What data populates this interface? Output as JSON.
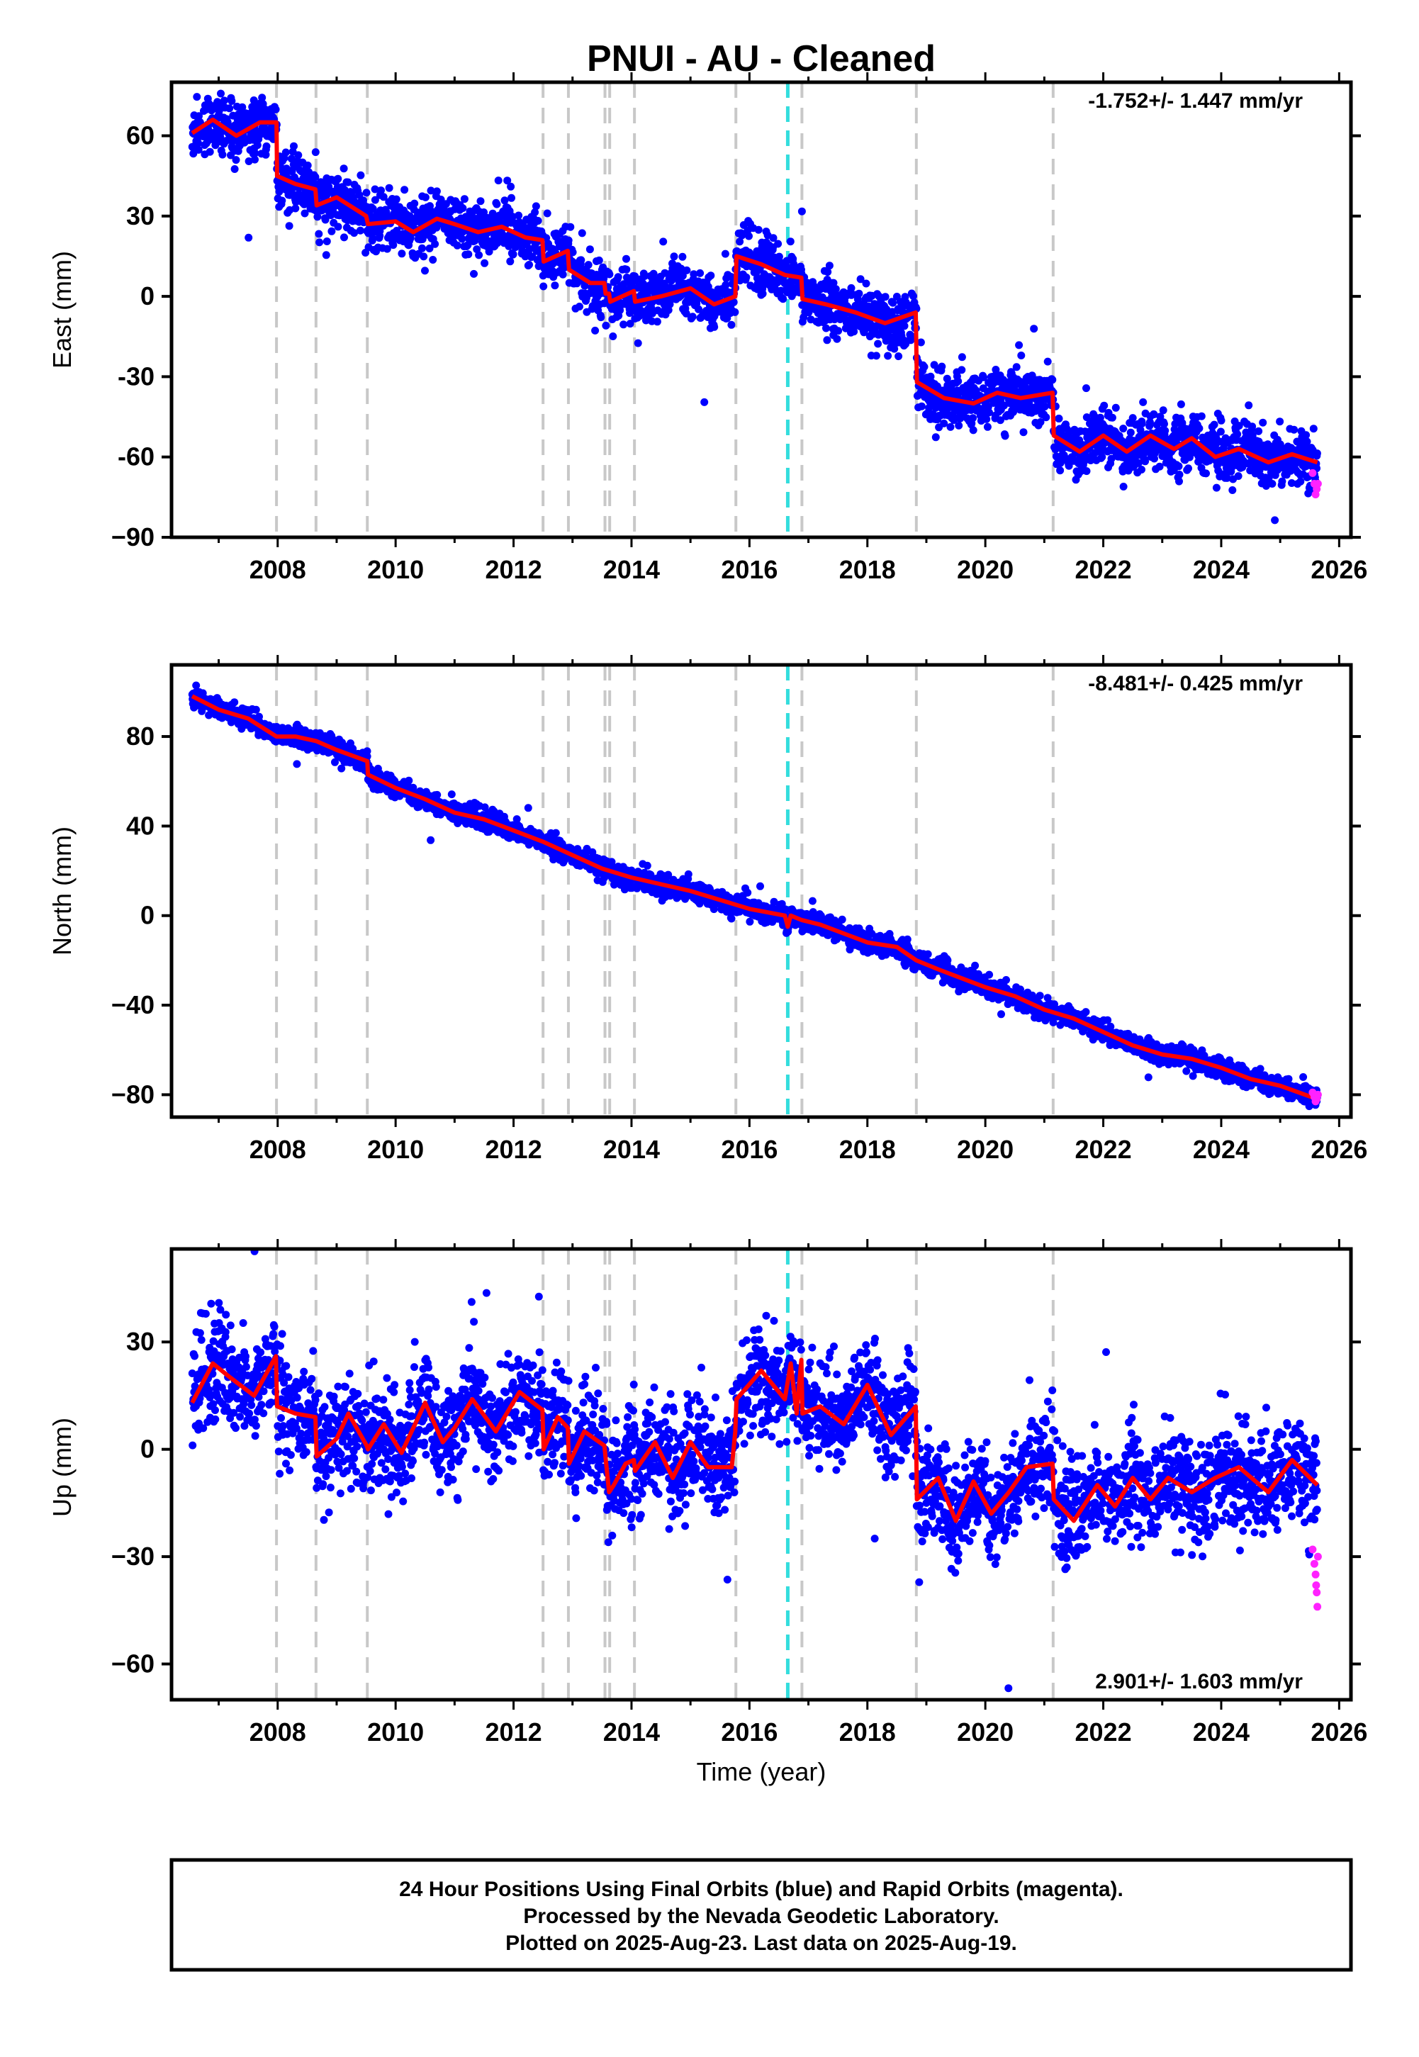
{
  "title": "PNUI  - AU - Cleaned",
  "colors": {
    "final_orbits": "#0000ff",
    "rapid_orbits": "#ff22ff",
    "model": "#ff0000",
    "event_lines": "#c8c8c8",
    "antenna_change": "#33dddd"
  },
  "xaxis": {
    "label": "Time (year)",
    "range": [
      2006.2,
      2026.2
    ],
    "ticks": [
      2008,
      2010,
      2012,
      2014,
      2016,
      2018,
      2020,
      2022,
      2024,
      2026
    ],
    "tick_labels": [
      "2008",
      "2010",
      "2012",
      "2014",
      "2016",
      "2018",
      "2020",
      "2022",
      "2024",
      "2026"
    ]
  },
  "event_lines": [
    2007.98,
    2008.65,
    2009.52,
    2012.5,
    2012.93,
    2013.55,
    2013.63,
    2014.05,
    2015.77,
    2016.89,
    2018.83,
    2021.15
  ],
  "antenna_change": [
    2016.65
  ],
  "footer": {
    "line1": "24 Hour Positions Using Final Orbits (blue) and Rapid Orbits (magenta).",
    "line2": "Processed by the Nevada Geodetic Laboratory.",
    "line3": "Plotted on 2025-Aug-23. Last data on 2025-Aug-19."
  },
  "chart_data": [
    {
      "type": "scatter",
      "panel": "east",
      "ylabel": "East (mm)",
      "ylim": [
        -90,
        80
      ],
      "yticks": [
        60,
        30,
        0,
        -30,
        -60,
        -90
      ],
      "ytick_labels": [
        "60",
        "30",
        "0",
        "-30",
        "-60",
        "−90"
      ],
      "rate_text": "-1.752+/- 1.447 mm/yr",
      "rate_position": "top-right",
      "trend_start": 2006.55,
      "trend_end": 2025.63,
      "scatter_sigma": 5,
      "series": [
        {
          "name": "model",
          "x": [
            2006.55,
            2006.9,
            2007.3,
            2007.7,
            2007.98,
            2007.99,
            2008.3,
            2008.64,
            2008.66,
            2009.0,
            2009.5,
            2009.53,
            2010.0,
            2010.3,
            2010.7,
            2011.0,
            2011.4,
            2011.8,
            2012.2,
            2012.49,
            2012.51,
            2012.92,
            2012.94,
            2013.3,
            2013.54,
            2013.56,
            2013.62,
            2013.64,
            2014.04,
            2014.06,
            2014.5,
            2015.0,
            2015.4,
            2015.76,
            2015.78,
            2016.2,
            2016.6,
            2016.88,
            2016.9,
            2017.3,
            2017.8,
            2018.3,
            2018.82,
            2018.84,
            2019.3,
            2019.8,
            2020.2,
            2020.6,
            2021.14,
            2021.16,
            2021.6,
            2022.0,
            2022.4,
            2022.8,
            2023.2,
            2023.5,
            2023.9,
            2024.3,
            2024.8,
            2025.2,
            2025.63
          ],
          "y": [
            61,
            66,
            60,
            65,
            65,
            45,
            42,
            40,
            34,
            37,
            30,
            27,
            28,
            24,
            29,
            27,
            24,
            26,
            22,
            21,
            13,
            17,
            10,
            5,
            5,
            1,
            1,
            -2,
            2,
            -2,
            0,
            3,
            -3,
            0,
            15,
            12,
            8,
            7,
            -1,
            -3,
            -6,
            -10,
            -6,
            -32,
            -38,
            -40,
            -36,
            -38,
            -36,
            -52,
            -58,
            -52,
            -58,
            -52,
            -57,
            -53,
            -60,
            -57,
            -62,
            -59,
            -62
          ]
        },
        {
          "name": "rapid",
          "x": [
            2025.55,
            2025.58,
            2025.6,
            2025.62,
            2025.64
          ],
          "y": [
            -66,
            -70,
            -74,
            -72,
            -70
          ]
        }
      ]
    },
    {
      "type": "scatter",
      "panel": "north",
      "ylabel": "North (mm)",
      "ylim": [
        -90,
        112
      ],
      "yticks": [
        80,
        40,
        0,
        -40,
        -80
      ],
      "ytick_labels": [
        "80",
        "40",
        "0",
        "−40",
        "−80"
      ],
      "rate_text": "-8.481+/- 0.425 mm/yr",
      "rate_position": "top-right",
      "trend_start": 2006.55,
      "trend_end": 2025.63,
      "scatter_sigma": 2.2,
      "series": [
        {
          "name": "model",
          "x": [
            2006.55,
            2007.0,
            2007.5,
            2007.98,
            2008.3,
            2008.65,
            2009.0,
            2009.52,
            2009.53,
            2010.0,
            2010.5,
            2011.0,
            2011.5,
            2012.0,
            2012.5,
            2013.0,
            2013.5,
            2014.0,
            2014.5,
            2015.0,
            2015.5,
            2016.0,
            2016.6,
            2016.65,
            2016.7,
            2016.89,
            2017.2,
            2017.6,
            2018.0,
            2018.5,
            2018.83,
            2019.2,
            2019.6,
            2020.0,
            2020.5,
            2021.0,
            2021.5,
            2022.0,
            2022.5,
            2023.0,
            2023.5,
            2024.0,
            2024.5,
            2025.0,
            2025.63
          ],
          "y": [
            98,
            92,
            88,
            80,
            80,
            78,
            74,
            69,
            63,
            57,
            52,
            46,
            43,
            38,
            33,
            27,
            21,
            17,
            14,
            11,
            7,
            3,
            0,
            -5,
            0,
            -2,
            -4,
            -8,
            -12,
            -14,
            -20,
            -24,
            -28,
            -32,
            -36,
            -42,
            -46,
            -52,
            -58,
            -62,
            -64,
            -68,
            -73,
            -76,
            -82
          ]
        },
        {
          "name": "rapid",
          "x": [
            2025.55,
            2025.58,
            2025.6,
            2025.62,
            2025.64
          ],
          "y": [
            -79,
            -81,
            -83,
            -82,
            -80
          ]
        }
      ]
    },
    {
      "type": "scatter",
      "panel": "up",
      "ylabel": "Up (mm)",
      "xlabel": "Time (year)",
      "ylim": [
        -70,
        56
      ],
      "yticks": [
        30,
        0,
        -30,
        -60
      ],
      "ytick_labels": [
        "30",
        "0",
        "−30",
        "−60"
      ],
      "rate_text": "2.901+/- 1.603 mm/yr",
      "rate_position": "bottom-right",
      "trend_start": 2006.55,
      "trend_end": 2025.63,
      "scatter_sigma": 7,
      "series": [
        {
          "name": "model",
          "x": [
            2006.55,
            2006.9,
            2007.2,
            2007.6,
            2007.97,
            2007.99,
            2008.3,
            2008.64,
            2008.66,
            2009.0,
            2009.2,
            2009.51,
            2009.53,
            2009.8,
            2010.1,
            2010.5,
            2010.8,
            2011.0,
            2011.3,
            2011.7,
            2012.1,
            2012.49,
            2012.51,
            2012.75,
            2012.92,
            2012.94,
            2013.2,
            2013.54,
            2013.62,
            2013.7,
            2013.9,
            2014.04,
            2014.06,
            2014.4,
            2014.7,
            2015.0,
            2015.3,
            2015.7,
            2015.76,
            2015.78,
            2016.2,
            2016.6,
            2016.7,
            2016.8,
            2016.88,
            2016.9,
            2017.2,
            2017.6,
            2018.0,
            2018.4,
            2018.82,
            2018.84,
            2019.2,
            2019.5,
            2019.8,
            2020.1,
            2020.4,
            2020.7,
            2021.14,
            2021.16,
            2021.5,
            2021.9,
            2022.2,
            2022.5,
            2022.8,
            2023.1,
            2023.5,
            2023.9,
            2024.3,
            2024.8,
            2025.2,
            2025.63
          ],
          "y": [
            13,
            24,
            20,
            15,
            26,
            12,
            10,
            9,
            -2,
            3,
            10,
            1,
            0,
            7,
            -1,
            13,
            2,
            6,
            14,
            5,
            16,
            11,
            0,
            9,
            6,
            -4,
            5,
            1,
            -12,
            -10,
            -4,
            -3,
            -6,
            2,
            -8,
            2,
            -5,
            -5,
            5,
            14,
            22,
            14,
            24,
            10,
            25,
            10,
            12,
            7,
            18,
            4,
            12,
            -14,
            -8,
            -20,
            -9,
            -18,
            -12,
            -5,
            -4,
            -14,
            -20,
            -10,
            -16,
            -8,
            -14,
            -8,
            -12,
            -8,
            -5,
            -12,
            -3,
            -10
          ]
        },
        {
          "name": "rapid",
          "x": [
            2025.55,
            2025.58,
            2025.6,
            2025.61,
            2025.62,
            2025.63,
            2025.64
          ],
          "y": [
            -28,
            -32,
            -35,
            -38,
            -40,
            -44,
            -30
          ]
        }
      ]
    }
  ]
}
